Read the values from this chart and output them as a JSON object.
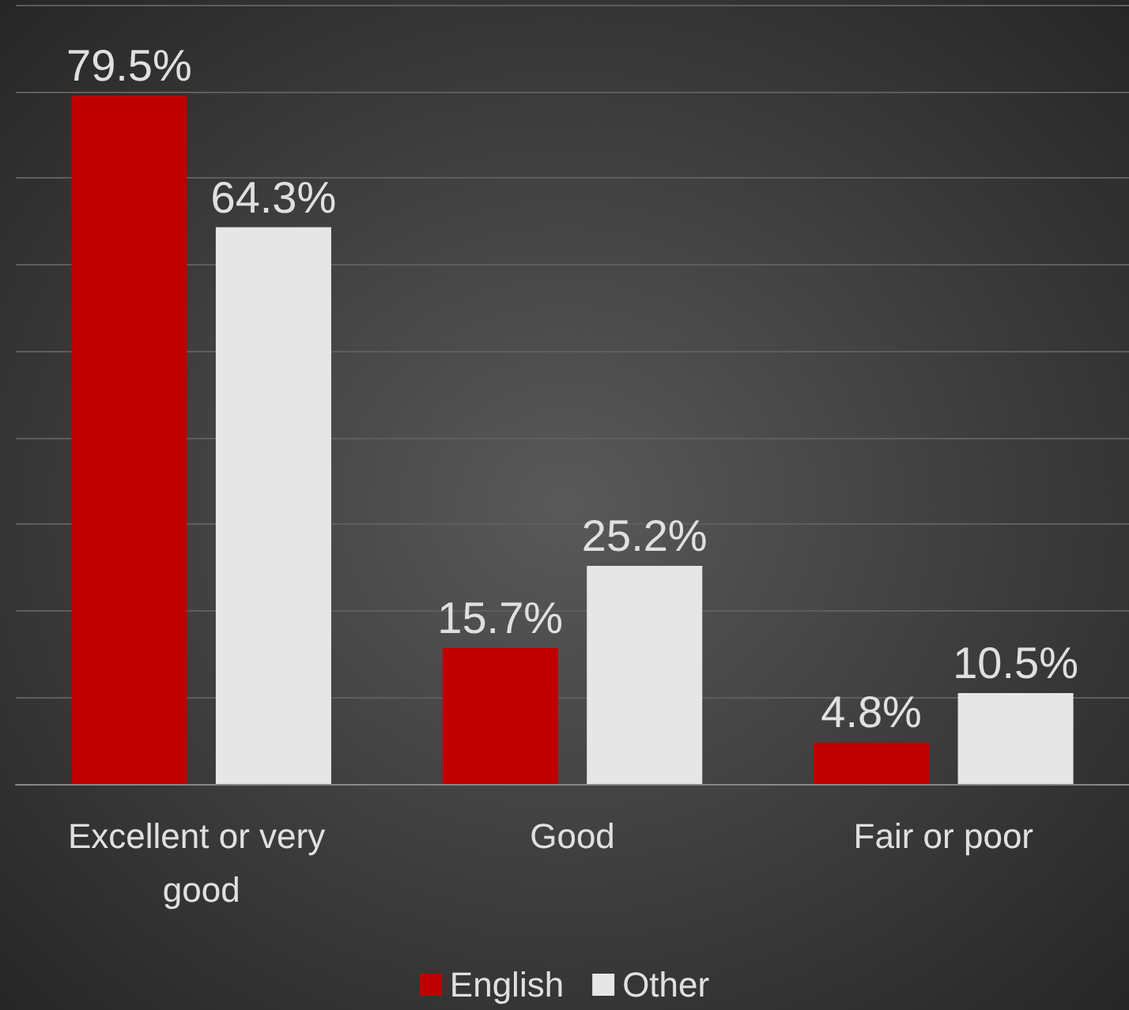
{
  "chart_data": {
    "type": "bar",
    "categories": [
      "Excellent or very good",
      "Good",
      "Fair or poor"
    ],
    "series": [
      {
        "name": "English",
        "color": "#c00000",
        "values": [
          79.5,
          15.7,
          4.8
        ],
        "value_labels": [
          "79.5%",
          "15.7%",
          "4.8%"
        ]
      },
      {
        "name": "Other",
        "color": "#e6e6e6",
        "values": [
          64.3,
          25.2,
          10.5
        ],
        "value_labels": [
          "64.3%",
          "25.2%",
          "10.5%"
        ]
      }
    ],
    "ylim": [
      0,
      90
    ],
    "yticks": [
      0,
      10,
      20,
      30,
      40,
      50,
      60,
      70,
      80,
      90
    ],
    "grid": true,
    "tick_labels": "x",
    "legend": "bottom"
  }
}
